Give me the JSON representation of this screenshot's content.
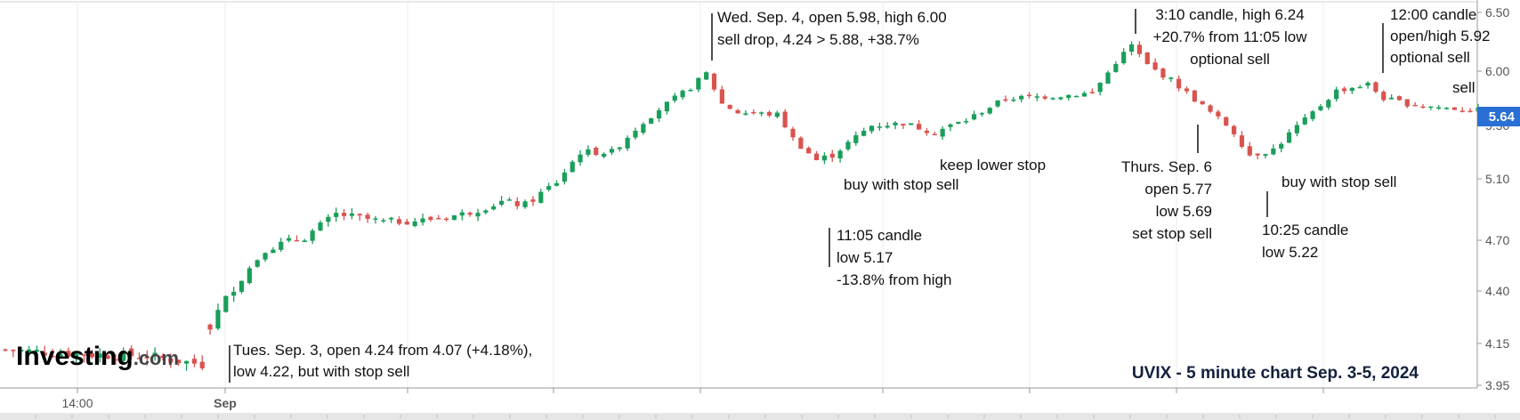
{
  "chart_data": {
    "type": "candlestick",
    "title": "UVIX - 5 minute chart Sep. 3-5, 2024",
    "source_logo": "Investing.com",
    "last_price": "5.64",
    "ylim": [
      3.95,
      6.55
    ],
    "y_ticks": [
      {
        "value": 6.5,
        "label": "6.50"
      },
      {
        "value": 6.0,
        "label": "6.00"
      },
      {
        "value": 5.5,
        "label": "5.50"
      },
      {
        "value": 5.1,
        "label": "5.10"
      },
      {
        "value": 4.7,
        "label": "4.70"
      },
      {
        "value": 4.4,
        "label": "4.40"
      },
      {
        "value": 4.15,
        "label": "4.15"
      },
      {
        "value": 3.95,
        "label": "3.95"
      }
    ],
    "x_labels": [
      {
        "label": "14:00",
        "bold": false
      },
      {
        "label": "Sep",
        "bold": true
      }
    ],
    "colors": {
      "up": "#1a9e5a",
      "down": "#d9534f",
      "last_badge": "#2a6fd6",
      "grid": "#e4e4e4"
    },
    "anchors": [
      {
        "i": 0,
        "v": 4.12
      },
      {
        "i": 9,
        "v": 4.1
      },
      {
        "i": 18,
        "v": 4.09
      },
      {
        "i": 25,
        "v": 4.05
      },
      {
        "i": 26,
        "v": 4.24
      },
      {
        "i": 29,
        "v": 4.42
      },
      {
        "i": 33,
        "v": 4.65
      },
      {
        "i": 38,
        "v": 4.72
      },
      {
        "i": 42,
        "v": 4.87
      },
      {
        "i": 48,
        "v": 4.82
      },
      {
        "i": 53,
        "v": 4.83
      },
      {
        "i": 58,
        "v": 4.87
      },
      {
        "i": 63,
        "v": 4.95
      },
      {
        "i": 66,
        "v": 4.93
      },
      {
        "i": 70,
        "v": 5.08
      },
      {
        "i": 73,
        "v": 5.3
      },
      {
        "i": 77,
        "v": 5.3
      },
      {
        "i": 83,
        "v": 5.65
      },
      {
        "i": 87,
        "v": 5.85
      },
      {
        "i": 89,
        "v": 5.98
      },
      {
        "i": 91,
        "v": 5.7
      },
      {
        "i": 93,
        "v": 5.62
      },
      {
        "i": 98,
        "v": 5.6
      },
      {
        "i": 100,
        "v": 5.4
      },
      {
        "i": 103,
        "v": 5.24
      },
      {
        "i": 105,
        "v": 5.28
      },
      {
        "i": 110,
        "v": 5.5
      },
      {
        "i": 114,
        "v": 5.52
      },
      {
        "i": 118,
        "v": 5.45
      },
      {
        "i": 122,
        "v": 5.55
      },
      {
        "i": 127,
        "v": 5.75
      },
      {
        "i": 133,
        "v": 5.77
      },
      {
        "i": 138,
        "v": 5.8
      },
      {
        "i": 141,
        "v": 6.08
      },
      {
        "i": 143,
        "v": 6.22
      },
      {
        "i": 145,
        "v": 6.05
      },
      {
        "i": 148,
        "v": 5.92
      },
      {
        "i": 150,
        "v": 5.8
      },
      {
        "i": 153,
        "v": 5.62
      },
      {
        "i": 156,
        "v": 5.45
      },
      {
        "i": 158,
        "v": 5.28
      },
      {
        "i": 161,
        "v": 5.32
      },
      {
        "i": 165,
        "v": 5.55
      },
      {
        "i": 169,
        "v": 5.82
      },
      {
        "i": 173,
        "v": 5.88
      },
      {
        "i": 175,
        "v": 5.75
      },
      {
        "i": 178,
        "v": 5.7
      },
      {
        "i": 183,
        "v": 5.66
      },
      {
        "i": 187,
        "v": 5.64
      }
    ],
    "annotations": [
      {
        "id": "tue",
        "x": 1,
        "lines": [
          "Tues. Sep. 3, open 4.24 from 4.07 (+4.18%),",
          "low 4.22, but with stop sell"
        ]
      },
      {
        "id": "wed",
        "x": 1,
        "lines": [
          "Wed. Sep. 4, open 5.98, high 6.00",
          "sell drop, 4.24 > 5.88, +38.7%"
        ]
      },
      {
        "id": "buy1",
        "x": 1,
        "lines": [
          "buy with stop sell"
        ]
      },
      {
        "id": "low1",
        "x": 1,
        "lines": [
          "11:05 candle",
          "low 5.17",
          "-13.8% from high"
        ]
      },
      {
        "id": "keep",
        "x": 1,
        "lines": [
          "keep lower stop"
        ]
      },
      {
        "id": "c310",
        "x": 1,
        "lines": [
          "3:10 candle, high 6.24",
          "+20.7% from 11:05 low",
          "optional sell"
        ]
      },
      {
        "id": "thu",
        "x": 1,
        "lines": [
          "Thurs. Sep. 6",
          "open 5.77",
          "low 5.69",
          "set stop sell"
        ]
      },
      {
        "id": "buy2",
        "x": 1,
        "lines": [
          "buy with stop sell"
        ]
      },
      {
        "id": "low2",
        "x": 1,
        "lines": [
          "10:25 candle",
          "low 5.22"
        ]
      },
      {
        "id": "c1200",
        "x": 1,
        "lines": [
          "12:00 candle",
          "open/high 5.92",
          "optional sell"
        ]
      },
      {
        "id": "sell",
        "x": 1,
        "lines": [
          "sell"
        ]
      }
    ]
  }
}
